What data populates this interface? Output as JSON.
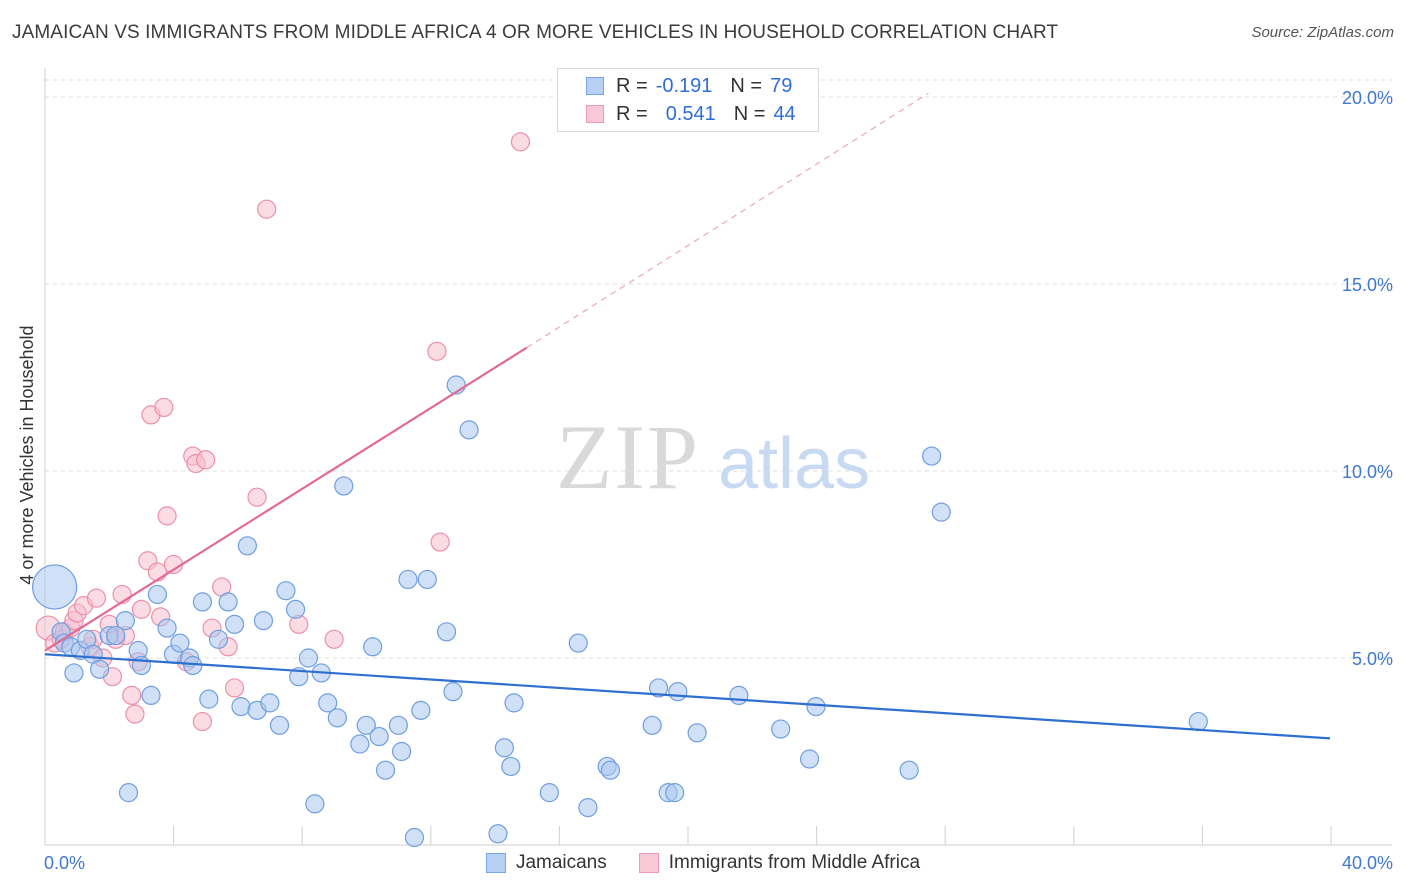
{
  "header": {
    "title": "JAMAICAN VS IMMIGRANTS FROM MIDDLE AFRICA 4 OR MORE VEHICLES IN HOUSEHOLD CORRELATION CHART",
    "source": "Source: ZipAtlas.com"
  },
  "watermark": {
    "zip": "ZIP",
    "atlas": "atlas"
  },
  "legend_top": {
    "rows": [
      {
        "r_label": "R =",
        "r_value": "-0.191",
        "n_label": "N =",
        "n_value": "79"
      },
      {
        "r_label": "R =",
        "r_value": "0.541",
        "n_label": "N =",
        "n_value": "44"
      }
    ]
  },
  "legend_bottom": {
    "series_1": "Jamaicans",
    "series_2": "Immigrants from Middle Africa"
  },
  "colors": {
    "blue_fill": "#a9c6ef",
    "blue_stroke": "#6f9fe0",
    "blue_line": "#2f6fcf",
    "pink_fill": "#f7bfd0",
    "pink_stroke": "#ec8fab",
    "pink_line": "#e36a95",
    "tick_label": "#3f78cf",
    "grid": "#dcdcdc"
  },
  "chart_data": {
    "type": "scatter",
    "title": "JAMAICAN VS IMMIGRANTS FROM MIDDLE AFRICA 4 OR MORE VEHICLES IN HOUSEHOLD CORRELATION CHART",
    "xlabel": "",
    "ylabel": "4 or more Vehicles in Household",
    "xlim": [
      0,
      40
    ],
    "ylim": [
      0,
      20
    ],
    "x_tick_labels": [
      "0.0%",
      "40.0%"
    ],
    "y_ticks": [
      5,
      10,
      15,
      20
    ],
    "y_tick_labels": [
      "5.0%",
      "10.0%",
      "15.0%",
      "20.0%"
    ],
    "grid": true,
    "legend_position": "top-center",
    "series": [
      {
        "name": "Jamaicans",
        "color": "blue",
        "r": "-0.191",
        "n": "79",
        "trend": {
          "x": [
            0,
            40
          ],
          "y": [
            5.1,
            2.85
          ]
        },
        "points": [
          [
            0.3,
            6.9
          ],
          [
            0.5,
            5.7
          ],
          [
            0.6,
            5.4
          ],
          [
            0.8,
            5.3
          ],
          [
            0.9,
            4.6
          ],
          [
            1.1,
            5.2
          ],
          [
            1.3,
            5.5
          ],
          [
            1.5,
            5.1
          ],
          [
            1.7,
            4.7
          ],
          [
            2.0,
            5.6
          ],
          [
            2.2,
            5.6
          ],
          [
            2.5,
            6.0
          ],
          [
            2.6,
            1.4
          ],
          [
            2.9,
            5.2
          ],
          [
            3.0,
            4.8
          ],
          [
            3.3,
            4.0
          ],
          [
            3.5,
            6.7
          ],
          [
            3.8,
            5.8
          ],
          [
            4.0,
            5.1
          ],
          [
            4.2,
            5.4
          ],
          [
            4.5,
            5.0
          ],
          [
            4.6,
            4.8
          ],
          [
            4.9,
            6.5
          ],
          [
            5.1,
            3.9
          ],
          [
            5.4,
            5.5
          ],
          [
            5.7,
            6.5
          ],
          [
            5.9,
            5.9
          ],
          [
            6.1,
            3.7
          ],
          [
            6.3,
            8.0
          ],
          [
            6.6,
            3.6
          ],
          [
            6.8,
            6.0
          ],
          [
            7.0,
            3.8
          ],
          [
            7.3,
            3.2
          ],
          [
            7.5,
            6.8
          ],
          [
            7.8,
            6.3
          ],
          [
            7.9,
            4.5
          ],
          [
            8.2,
            5.0
          ],
          [
            8.4,
            1.1
          ],
          [
            8.6,
            4.6
          ],
          [
            8.8,
            3.8
          ],
          [
            9.1,
            3.4
          ],
          [
            9.3,
            9.6
          ],
          [
            9.8,
            2.7
          ],
          [
            10.0,
            3.2
          ],
          [
            10.2,
            5.3
          ],
          [
            10.4,
            2.9
          ],
          [
            10.6,
            2.0
          ],
          [
            11.0,
            3.2
          ],
          [
            11.1,
            2.5
          ],
          [
            11.3,
            7.1
          ],
          [
            11.5,
            0.2
          ],
          [
            11.7,
            3.6
          ],
          [
            11.9,
            7.1
          ],
          [
            12.5,
            5.7
          ],
          [
            12.7,
            4.1
          ],
          [
            12.8,
            12.3
          ],
          [
            13.2,
            11.1
          ],
          [
            14.1,
            0.3
          ],
          [
            14.3,
            2.6
          ],
          [
            14.5,
            2.1
          ],
          [
            14.6,
            3.8
          ],
          [
            15.7,
            1.4
          ],
          [
            16.6,
            5.4
          ],
          [
            16.9,
            1.0
          ],
          [
            17.5,
            2.1
          ],
          [
            17.6,
            2.0
          ],
          [
            18.9,
            3.2
          ],
          [
            19.1,
            4.2
          ],
          [
            19.4,
            1.4
          ],
          [
            19.6,
            1.4
          ],
          [
            19.7,
            4.1
          ],
          [
            20.3,
            3.0
          ],
          [
            21.6,
            4.0
          ],
          [
            22.9,
            3.1
          ],
          [
            23.8,
            2.3
          ],
          [
            24.0,
            3.7
          ],
          [
            26.9,
            2.0
          ],
          [
            27.6,
            10.4
          ],
          [
            27.9,
            8.9
          ],
          [
            35.9,
            3.3
          ]
        ],
        "big_point_index": 0
      },
      {
        "name": "Immigrants from Middle Africa",
        "color": "pink",
        "r": "0.541",
        "n": "44",
        "trend": {
          "x": [
            0,
            15
          ],
          "y": [
            5.2,
            13.3
          ]
        },
        "trend_dashed": {
          "x": [
            15,
            27.5
          ],
          "y": [
            13.3,
            20.1
          ]
        },
        "points": [
          [
            0.1,
            5.8
          ],
          [
            0.3,
            5.4
          ],
          [
            0.5,
            5.5
          ],
          [
            0.6,
            5.7
          ],
          [
            0.8,
            5.8
          ],
          [
            0.9,
            6.0
          ],
          [
            1.0,
            6.2
          ],
          [
            1.2,
            6.4
          ],
          [
            1.4,
            5.3
          ],
          [
            1.5,
            5.5
          ],
          [
            1.6,
            6.6
          ],
          [
            1.8,
            5.0
          ],
          [
            2.0,
            5.9
          ],
          [
            2.1,
            4.5
          ],
          [
            2.2,
            5.5
          ],
          [
            2.4,
            6.7
          ],
          [
            2.5,
            5.6
          ],
          [
            2.7,
            4.0
          ],
          [
            2.8,
            3.5
          ],
          [
            2.9,
            4.9
          ],
          [
            3.0,
            6.3
          ],
          [
            3.2,
            7.6
          ],
          [
            3.3,
            11.5
          ],
          [
            3.5,
            7.3
          ],
          [
            3.6,
            6.1
          ],
          [
            3.7,
            11.7
          ],
          [
            3.8,
            8.8
          ],
          [
            4.0,
            7.5
          ],
          [
            4.4,
            4.9
          ],
          [
            4.6,
            10.4
          ],
          [
            4.7,
            10.2
          ],
          [
            4.9,
            3.3
          ],
          [
            5.0,
            10.3
          ],
          [
            5.2,
            5.8
          ],
          [
            5.5,
            6.9
          ],
          [
            5.7,
            5.3
          ],
          [
            5.9,
            4.2
          ],
          [
            6.6,
            9.3
          ],
          [
            6.9,
            17.0
          ],
          [
            7.9,
            5.9
          ],
          [
            9.0,
            5.5
          ],
          [
            12.2,
            13.2
          ],
          [
            12.3,
            8.1
          ],
          [
            14.8,
            18.8
          ]
        ],
        "big_point_index": 0
      }
    ]
  }
}
